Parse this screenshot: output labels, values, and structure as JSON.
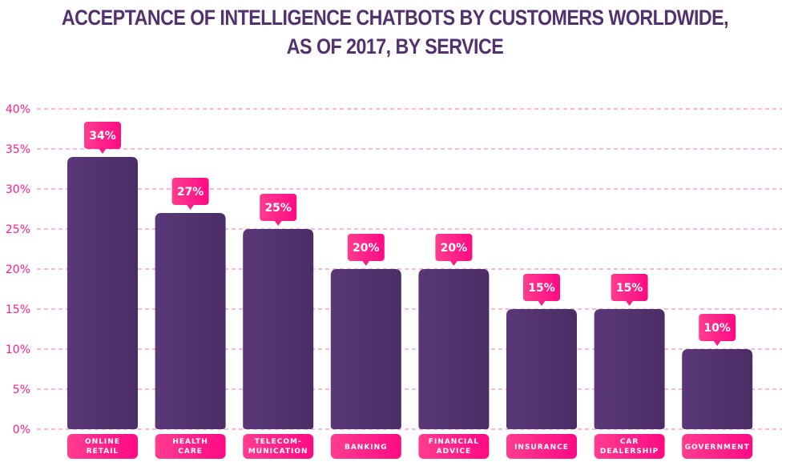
{
  "chart_data": {
    "type": "bar",
    "title": "ACCEPTANCE OF INTELLIGENCE CHATBOTS BY CUSTOMERS WORLDWIDE, AS OF 2017, BY SERVICE",
    "title_lines": [
      "ACCEPTANCE OF INTELLIGENCE CHATBOTS BY CUSTOMERS WORLDWIDE,",
      "AS OF 2017, BY SERVICE"
    ],
    "xlabel": "",
    "ylabel": "",
    "ylim": [
      0,
      40
    ],
    "yticks": [
      0,
      5,
      10,
      15,
      20,
      25,
      30,
      35,
      40
    ],
    "ytick_labels": [
      "0%",
      "5%",
      "10%",
      "15%",
      "20%",
      "25%",
      "30%",
      "35%",
      "40%"
    ],
    "grid": true,
    "categories": [
      "ONLINE RETAIL",
      "HEALTH CARE",
      "TELECOMMUNICATION",
      "BANKING",
      "FINANCIAL ADVICE",
      "INSURANCE",
      "CAR DEALERSHIP",
      "GOVERNMENT"
    ],
    "category_label_lines": [
      [
        "ONLINE",
        "RETAIL"
      ],
      [
        "HEALTH",
        "CARE"
      ],
      [
        "TELECOM-",
        "MUNICATION"
      ],
      [
        "BANKING"
      ],
      [
        "FINANCIAL",
        "ADVICE"
      ],
      [
        "INSURANCE"
      ],
      [
        "CAR",
        "DEALERSHIP"
      ],
      [
        "GOVERNMENT"
      ]
    ],
    "values": [
      34,
      27,
      25,
      20,
      20,
      15,
      15,
      10
    ],
    "data_labels": [
      "34%",
      "27%",
      "25%",
      "20%",
      "20%",
      "15%",
      "15%",
      "10%"
    ],
    "colors": {
      "title": "#53316f",
      "bar": "#563573",
      "bar_dark": "#4b2d66",
      "accent": "#ff1a8c",
      "accent_light": "#ff3d8f",
      "grid": "#ff6fb0"
    }
  }
}
